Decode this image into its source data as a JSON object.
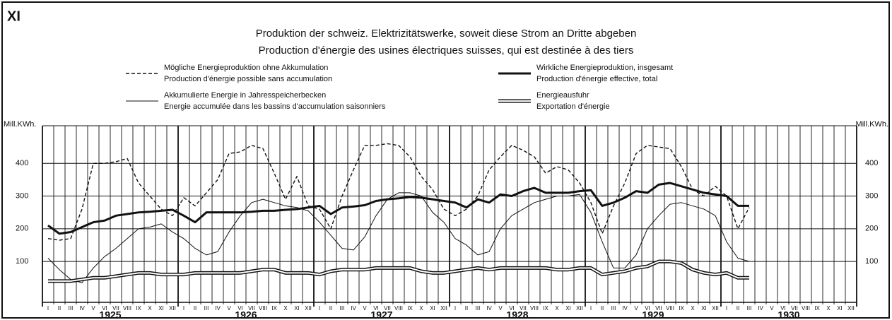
{
  "chart_data": {
    "type": "line",
    "label": "XI",
    "title": "Produktion der schweiz. Elektrizitätswerke, soweit diese Strom an Dritte abgeben",
    "subtitle": "Production d'énergie des usines électriques suisses, qui est destinée à des tiers",
    "y_label": "Mill.KWh.",
    "y2_label": "Mill.KWh.",
    "categories": [
      "I",
      "II",
      "III",
      "IV",
      "V",
      "VI",
      "VII",
      "VIII",
      "IX",
      "X",
      "XI",
      "XII",
      "I",
      "II",
      "III",
      "IV",
      "V",
      "VI",
      "VII",
      "VIII",
      "IX",
      "X",
      "XI",
      "XII",
      "I",
      "II",
      "III",
      "IV",
      "V",
      "VI",
      "VII",
      "VIII",
      "IX",
      "X",
      "XI",
      "XII",
      "I",
      "II",
      "III",
      "IV",
      "V",
      "VI",
      "VII",
      "VIII",
      "IX",
      "X",
      "XI",
      "XII",
      "I",
      "II",
      "III",
      "IV",
      "V",
      "VI",
      "VII",
      "VIII",
      "IX",
      "X",
      "XI",
      "XII",
      "I",
      "II",
      "III",
      "IV",
      "V",
      "VI",
      "VII",
      "VIII",
      "IX",
      "X",
      "XI",
      "XII"
    ],
    "years": [
      "1925",
      "1926",
      "1927",
      "1928",
      "1929",
      "1930"
    ],
    "ylim": [
      -25,
      515
    ],
    "yticks": [
      100,
      200,
      300,
      400
    ],
    "series": [
      {
        "name": "Mögliche Energieproduktion ohne Akkumulation",
        "name_fr": "Production d'énergie possible sans accumulation",
        "color": "#111",
        "style": "dashed",
        "values": [
          170,
          165,
          170,
          260,
          400,
          400,
          405,
          415,
          340,
          300,
          260,
          240,
          295,
          270,
          310,
          350,
          430,
          435,
          455,
          445,
          370,
          290,
          360,
          270,
          260,
          200,
          300,
          380,
          455,
          455,
          460,
          455,
          420,
          360,
          320,
          260,
          240,
          260,
          300,
          380,
          420,
          455,
          440,
          420,
          370,
          390,
          380,
          340,
          280,
          185,
          270,
          340,
          430,
          455,
          450,
          445,
          390,
          320,
          300,
          330,
          300,
          200,
          265,
          null,
          null,
          null,
          null,
          null,
          null,
          null,
          null,
          null
        ]
      },
      {
        "name": "Akkumulierte Energie in Jahresspeicherbecken",
        "name_fr": "Energie accumulée dans les bassins d'accumulation saisonniers",
        "color": "#111",
        "style": "thin",
        "values": [
          110,
          75,
          45,
          35,
          80,
          115,
          140,
          170,
          200,
          205,
          215,
          190,
          170,
          140,
          120,
          130,
          190,
          240,
          280,
          290,
          280,
          270,
          265,
          255,
          220,
          180,
          140,
          135,
          175,
          240,
          290,
          310,
          310,
          300,
          250,
          220,
          170,
          150,
          120,
          130,
          200,
          240,
          260,
          280,
          290,
          300,
          300,
          305,
          250,
          160,
          80,
          80,
          120,
          200,
          240,
          275,
          280,
          270,
          260,
          240,
          160,
          110,
          100,
          null,
          null,
          null,
          null,
          null,
          null,
          null,
          null,
          null
        ]
      },
      {
        "name": "Wirkliche Energieproduktion, insgesamt",
        "name_fr": "Production d'énergie effective, total",
        "color": "#111",
        "style": "thick",
        "values": [
          210,
          185,
          190,
          205,
          220,
          225,
          240,
          245,
          250,
          252,
          255,
          258,
          240,
          220,
          250,
          250,
          250,
          250,
          252,
          255,
          255,
          258,
          260,
          265,
          270,
          245,
          265,
          268,
          272,
          285,
          290,
          293,
          297,
          295,
          290,
          285,
          280,
          265,
          290,
          280,
          305,
          300,
          315,
          325,
          310,
          310,
          310,
          315,
          318,
          270,
          280,
          295,
          315,
          310,
          335,
          340,
          330,
          320,
          310,
          305,
          300,
          270,
          270,
          null,
          null,
          null,
          null,
          null,
          null,
          null,
          null,
          null
        ]
      },
      {
        "name": "Energieausfuhr",
        "name_fr": "Exportation d'énergie",
        "color": "#111",
        "style": "double",
        "values": [
          40,
          40,
          40,
          45,
          50,
          50,
          55,
          60,
          65,
          65,
          60,
          60,
          60,
          65,
          65,
          65,
          65,
          65,
          70,
          75,
          75,
          65,
          65,
          65,
          60,
          70,
          75,
          75,
          75,
          80,
          80,
          80,
          80,
          70,
          65,
          65,
          70,
          75,
          80,
          75,
          80,
          80,
          80,
          80,
          80,
          75,
          75,
          80,
          80,
          60,
          65,
          70,
          80,
          85,
          100,
          100,
          95,
          75,
          65,
          60,
          65,
          50,
          50,
          null,
          null,
          null,
          null,
          null,
          null,
          null,
          null,
          null
        ]
      }
    ],
    "grid": true
  }
}
